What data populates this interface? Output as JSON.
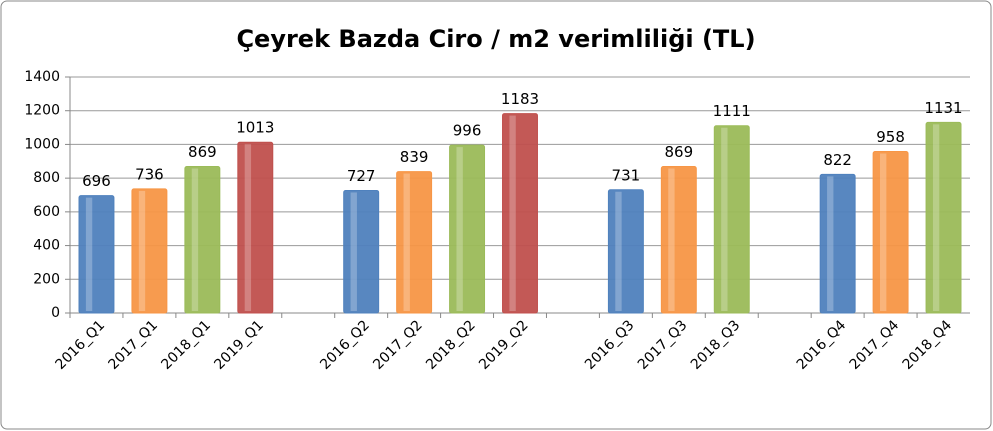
{
  "chart_data": {
    "type": "bar",
    "title": "Çeyrek Bazda Ciro / m2 verimliliği (TL)",
    "categories": [
      "2016_Q1",
      "2017_Q1",
      "2018_Q1",
      "2019_Q1",
      null,
      "2016_Q2",
      "2017_Q2",
      "2018_Q2",
      "2019_Q2",
      null,
      "2016_Q3",
      "2017_Q3",
      "2018_Q3",
      null,
      "2016_Q4",
      "2017_Q4",
      "2018_Q4"
    ],
    "values": [
      696,
      736,
      869,
      1013,
      null,
      727,
      839,
      996,
      1183,
      null,
      731,
      869,
      1111,
      null,
      822,
      958,
      1131
    ],
    "colors": [
      "#4f81bd",
      "#f79646",
      "#9bbb59",
      "#c0504d",
      null,
      "#4f81bd",
      "#f79646",
      "#9bbb59",
      "#c0504d",
      null,
      "#4f81bd",
      "#f79646",
      "#9bbb59",
      null,
      "#4f81bd",
      "#f79646",
      "#9bbb59"
    ],
    "ylim": [
      0,
      1400
    ],
    "yticks": [
      0,
      200,
      400,
      600,
      800,
      1000,
      1200,
      1400
    ],
    "grid": true
  }
}
